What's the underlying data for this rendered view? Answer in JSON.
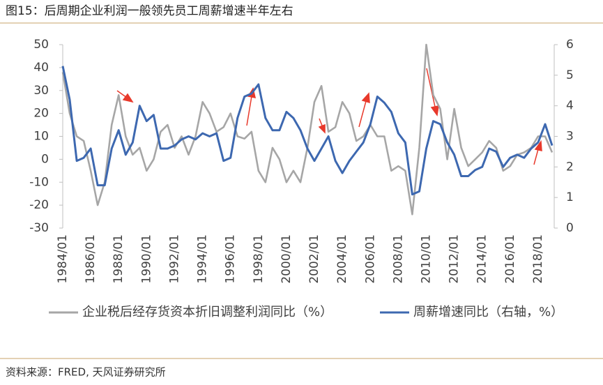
{
  "title": "图15：后周期企业利润一般领先员工周薪增速半年左右",
  "source": "资料来源：FRED, 天风证券研究所",
  "chart_data": {
    "type": "line",
    "x": [
      "1984/01",
      "1984/07",
      "1985/01",
      "1985/07",
      "1986/01",
      "1986/07",
      "1987/01",
      "1987/07",
      "1988/01",
      "1988/07",
      "1989/01",
      "1989/07",
      "1990/01",
      "1990/07",
      "1991/01",
      "1991/07",
      "1992/01",
      "1992/07",
      "1993/01",
      "1993/07",
      "1994/01",
      "1994/07",
      "1995/01",
      "1995/07",
      "1996/01",
      "1996/07",
      "1997/01",
      "1997/07",
      "1998/01",
      "1998/07",
      "1999/01",
      "1999/07",
      "2000/01",
      "2000/07",
      "2001/01",
      "2001/07",
      "2002/01",
      "2002/07",
      "2003/01",
      "2003/07",
      "2004/01",
      "2004/07",
      "2005/01",
      "2005/07",
      "2006/01",
      "2006/07",
      "2007/01",
      "2007/07",
      "2008/01",
      "2008/07",
      "2009/01",
      "2009/07",
      "2010/01",
      "2010/07",
      "2011/01",
      "2011/07",
      "2012/01",
      "2012/07",
      "2013/01",
      "2013/07",
      "2014/01",
      "2014/07",
      "2015/01",
      "2015/07",
      "2016/01",
      "2016/07",
      "2017/01",
      "2017/07",
      "2018/01",
      "2018/07",
      "2019/01"
    ],
    "series": [
      {
        "name": "企业税后经存货资本折旧调整利润同比（%）",
        "color": "#a6a6a6",
        "axis": "y",
        "values": [
          38,
          20,
          10,
          8,
          -5,
          -20,
          -10,
          15,
          28,
          10,
          2,
          5,
          -5,
          0,
          12,
          15,
          5,
          10,
          2,
          10,
          25,
          20,
          12,
          14,
          20,
          10,
          9,
          12,
          -5,
          -10,
          5,
          0,
          -10,
          -5,
          -10,
          5,
          25,
          32,
          12,
          14,
          25,
          20,
          8,
          10,
          15,
          10,
          10,
          -5,
          -3,
          -5,
          -24,
          5,
          50,
          28,
          22,
          0,
          22,
          5,
          -3,
          0,
          3,
          8,
          5,
          -5,
          -3,
          2,
          3,
          5,
          10,
          10,
          3
        ]
      },
      {
        "name": "周薪增速同比（右轴，%）",
        "color": "#3d68b0",
        "axis": "y2",
        "values": [
          5.3,
          4.2,
          2.2,
          2.3,
          2.6,
          1.4,
          1.4,
          2.6,
          3.2,
          2.4,
          2.8,
          4.0,
          3.5,
          3.7,
          2.6,
          2.6,
          2.7,
          2.9,
          3.0,
          2.9,
          3.1,
          3.0,
          3.1,
          2.2,
          2.3,
          3.6,
          4.3,
          4.4,
          4.7,
          3.6,
          3.2,
          3.2,
          3.8,
          3.6,
          3.2,
          2.6,
          2.2,
          2.6,
          3.0,
          2.2,
          1.8,
          2.2,
          2.5,
          2.8,
          3.4,
          4.3,
          4.1,
          3.8,
          3.1,
          2.8,
          1.1,
          1.2,
          2.6,
          3.5,
          3.4,
          2.8,
          2.4,
          1.7,
          1.7,
          1.9,
          2.0,
          2.6,
          2.5,
          2.0,
          2.3,
          2.4,
          2.3,
          2.6,
          2.8,
          3.4,
          2.7
        ]
      }
    ],
    "xticks": [
      "1984/01",
      "1986/01",
      "1988/01",
      "1990/01",
      "1992/01",
      "1994/01",
      "1996/01",
      "1998/01",
      "2000/01",
      "2002/01",
      "2004/01",
      "2006/01",
      "2008/01",
      "2010/01",
      "2012/01",
      "2014/01",
      "2016/01",
      "2018/01"
    ],
    "ylim": [
      -30,
      50
    ],
    "yticks": [
      -30,
      -20,
      -10,
      0,
      10,
      20,
      30,
      40,
      50
    ],
    "y2lim": [
      0,
      6
    ],
    "y2ticks": [
      0,
      1,
      2,
      3,
      4,
      5,
      6
    ]
  }
}
